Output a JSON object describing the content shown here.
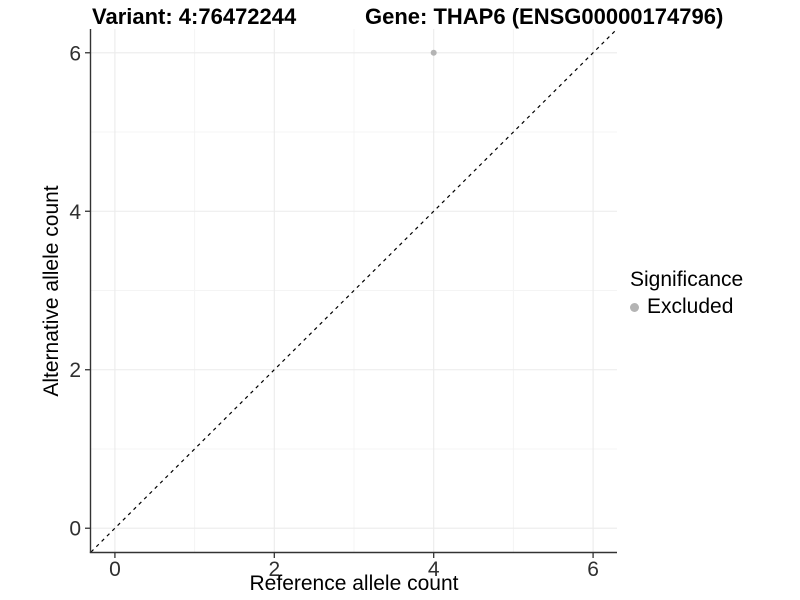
{
  "chart_data": {
    "type": "scatter",
    "title_left": "Variant: 4:76472244",
    "title_right": "Gene: THAP6 (ENSG00000174796)",
    "xlabel": "Reference allele count",
    "ylabel": "Alternative allele count",
    "xlim": [
      -0.3,
      6.3
    ],
    "ylim": [
      -0.3,
      6.3
    ],
    "x_ticks": [
      0,
      2,
      4,
      6
    ],
    "y_ticks": [
      0,
      2,
      4,
      6
    ],
    "minor_grid_x": [
      1,
      3,
      5
    ],
    "minor_grid_y": [
      1,
      3,
      5
    ],
    "grid": true,
    "series": [
      {
        "name": "Excluded",
        "marker": "circle",
        "color": "#b4b4b4",
        "points": [
          [
            4,
            6
          ]
        ]
      }
    ],
    "reference_line": {
      "description": "identity line y = x",
      "style": "dashed",
      "color": "#000000",
      "from": [
        -0.3,
        -0.3
      ],
      "to": [
        6.3,
        6.3
      ]
    },
    "legend": {
      "title": "Significance",
      "position": "right",
      "items": [
        {
          "label": "Excluded",
          "color": "#b4b4b4",
          "marker": "circle"
        }
      ]
    }
  },
  "colors": {
    "background": "#ffffff",
    "grid_major": "#ebebeb",
    "grid_minor": "#f4f4f4",
    "axis_line": "#333333",
    "tick_mark": "#333333",
    "tick_label": "#303030",
    "title_text": "#000000",
    "point": "#b4b4b4"
  }
}
